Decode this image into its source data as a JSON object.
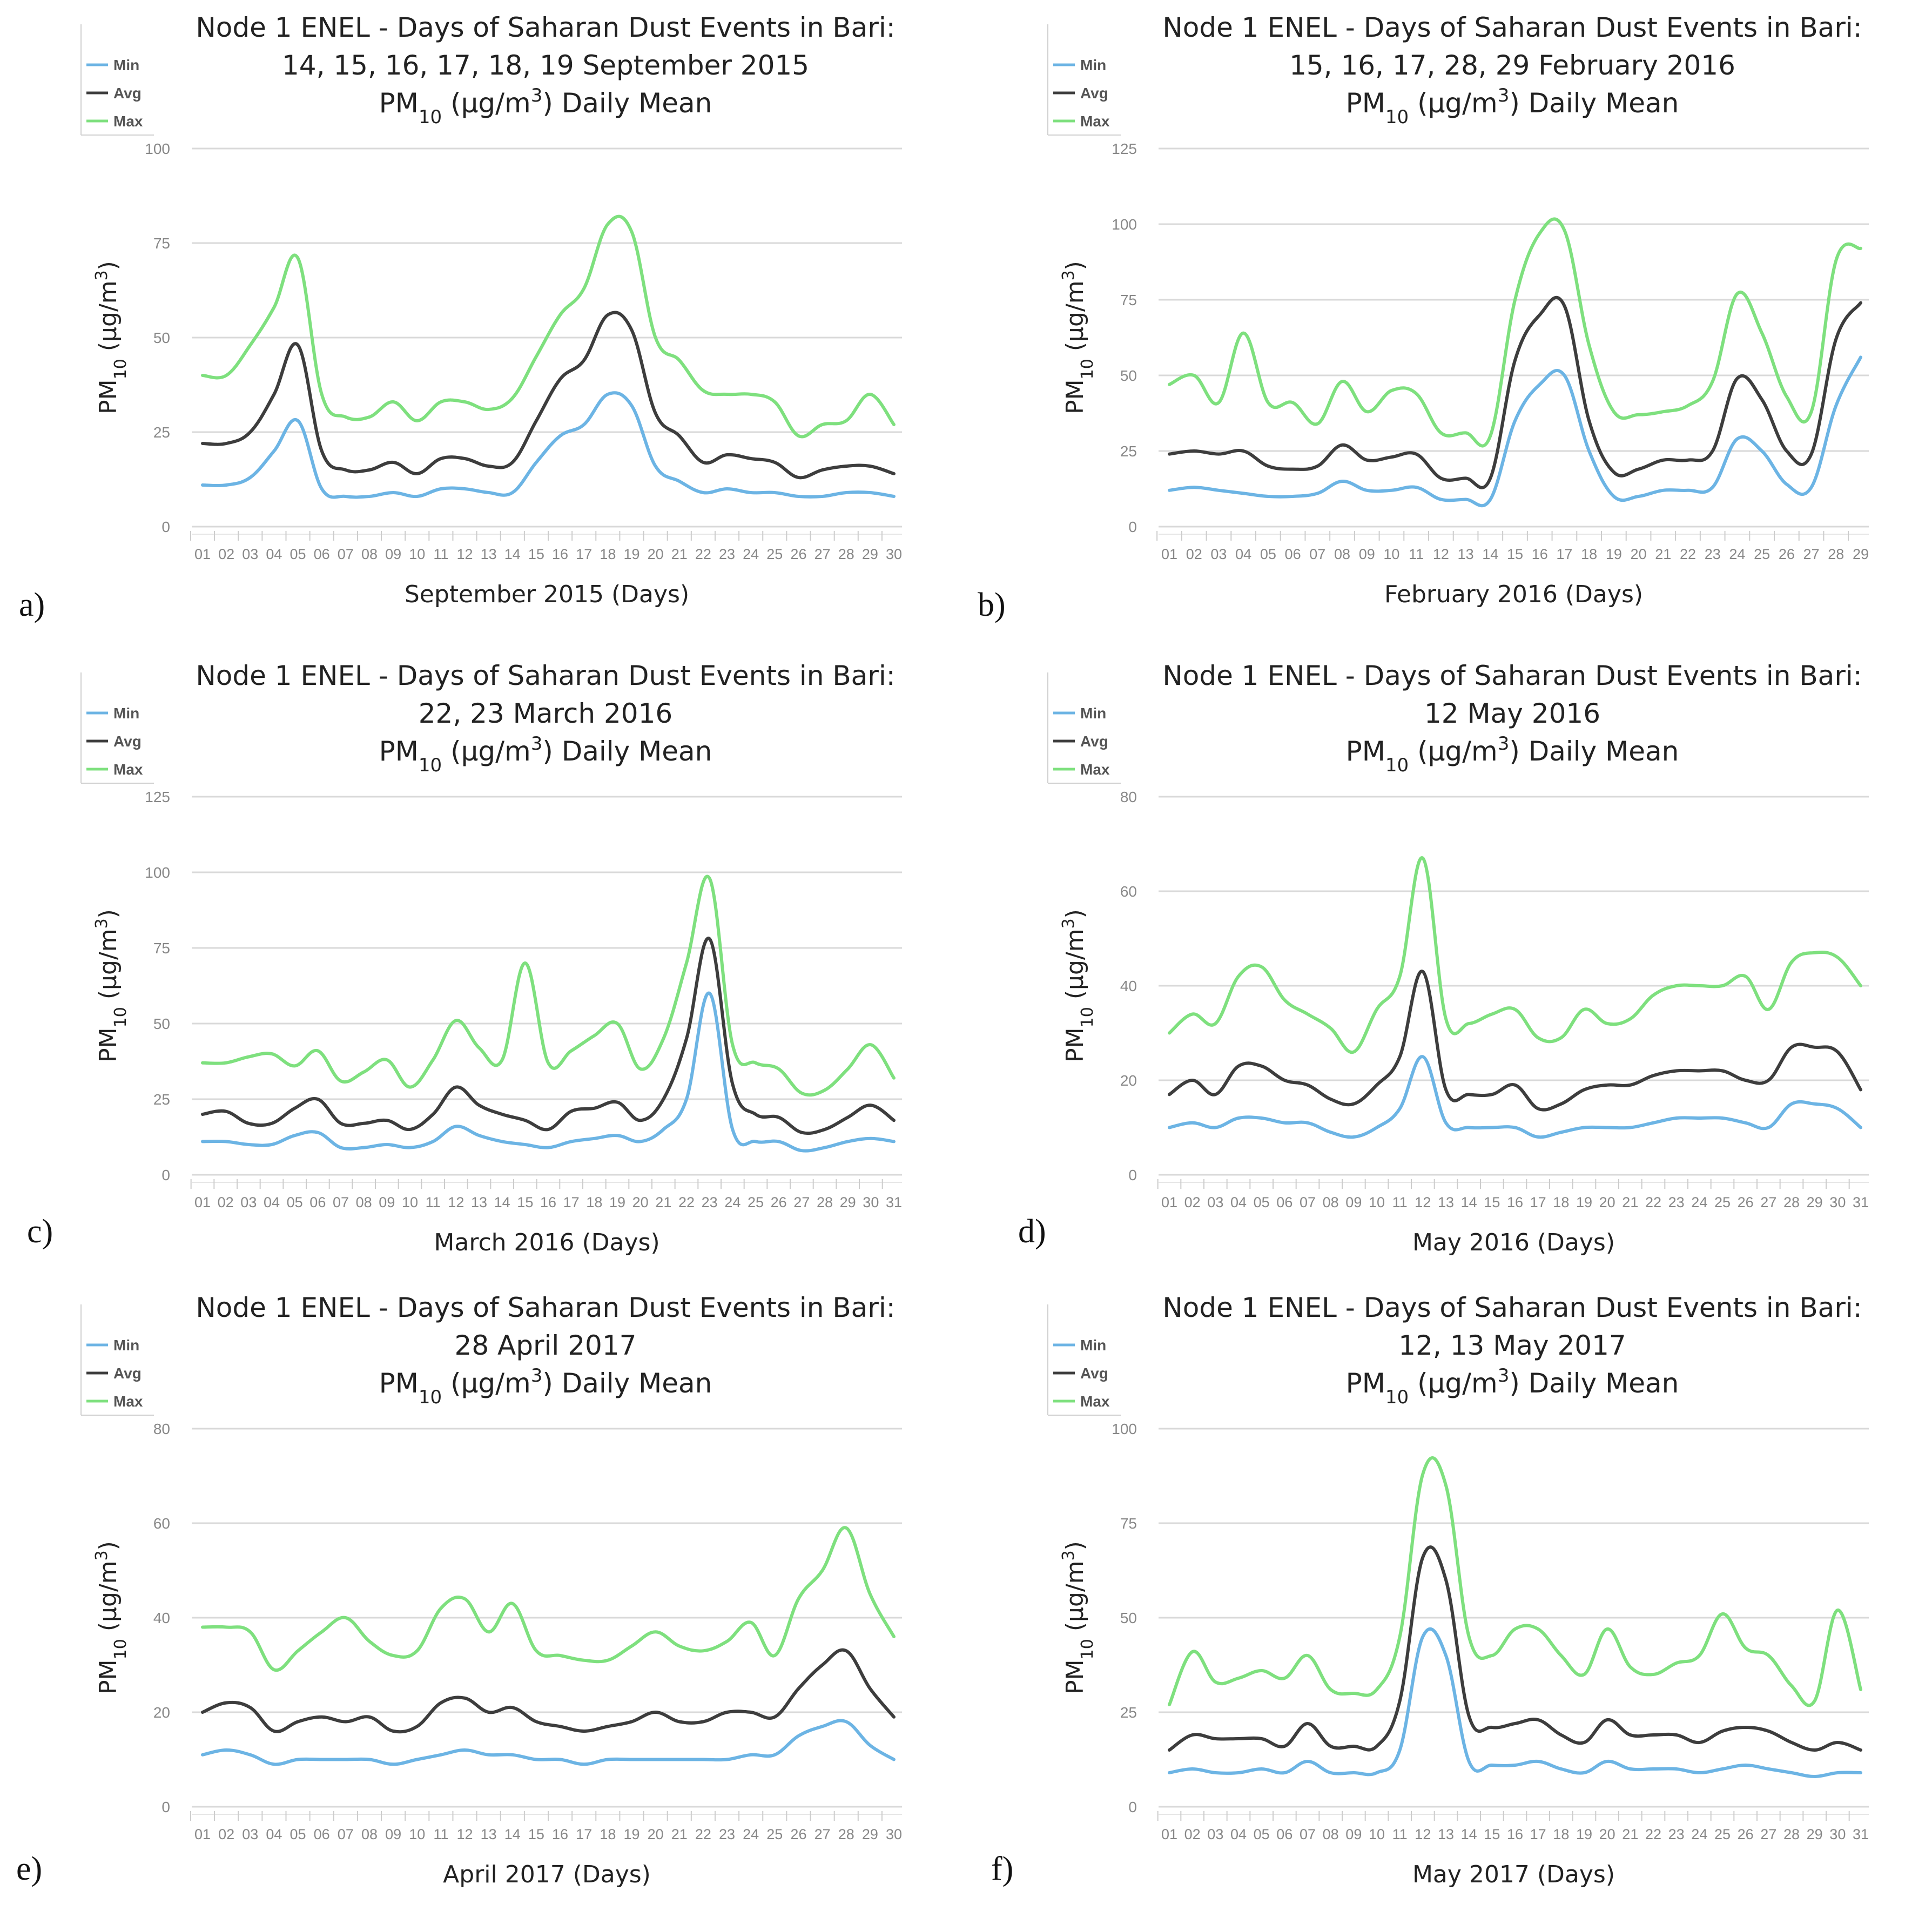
{
  "title_common": "Node 1 ENEL - Days of Saharan Dust Events in Bari:",
  "title_suffix": {
    "pm": "PM",
    "sub": "10",
    "unit_open": " (μg/m",
    "sup": "3",
    "unit_close": ")",
    "rest": " Daily Mean"
  },
  "ylabel": {
    "pm": "PM",
    "sub": "10",
    "unit_open": " (μg/m",
    "sup": "3",
    "unit_close": ")"
  },
  "legend": [
    {
      "name": "Min",
      "color": "#6cb4e4"
    },
    {
      "name": "Avg",
      "color": "#3d3d3d"
    },
    {
      "name": "Max",
      "color": "#7ee07e"
    }
  ],
  "chart_data": [
    {
      "type": "line",
      "label": "a)",
      "title": [
        "Node 1 ENEL - Days of Saharan Dust Events in Bari:",
        "14, 15, 16, 17, 18, 19 September 2015",
        "PM10 (μg/m3) Daily Mean"
      ],
      "title_line2": "14, 15, 16, 17, 18, 19 September 2015",
      "xlabel": "September 2015 (Days)",
      "ylabel": "PM10 (μg/m3)",
      "ylim": [
        0,
        100
      ],
      "yticks": [
        0,
        25,
        50,
        75,
        100
      ],
      "categories": [
        "01",
        "02",
        "03",
        "04",
        "05",
        "06",
        "07",
        "08",
        "09",
        "10",
        "11",
        "12",
        "13",
        "14",
        "15",
        "16",
        "17",
        "18",
        "19",
        "20",
        "21",
        "22",
        "23",
        "24",
        "25",
        "26",
        "27",
        "28",
        "29",
        "30"
      ],
      "series": [
        {
          "name": "Min",
          "values": [
            11,
            11,
            13,
            20,
            28,
            10,
            8,
            8,
            9,
            8,
            10,
            10,
            9,
            9,
            17,
            24,
            27,
            35,
            32,
            16,
            12,
            9,
            10,
            9,
            9,
            8,
            8,
            9,
            9,
            8
          ]
        },
        {
          "name": "Avg",
          "values": [
            22,
            22,
            25,
            35,
            48,
            20,
            15,
            15,
            17,
            14,
            18,
            18,
            16,
            17,
            28,
            39,
            44,
            56,
            52,
            30,
            24,
            17,
            19,
            18,
            17,
            13,
            15,
            16,
            16,
            14
          ]
        },
        {
          "name": "Max",
          "values": [
            40,
            40,
            48,
            58,
            71,
            35,
            29,
            29,
            33,
            28,
            33,
            33,
            31,
            34,
            45,
            56,
            63,
            80,
            78,
            50,
            44,
            36,
            35,
            35,
            33,
            24,
            27,
            28,
            35,
            27
          ]
        }
      ]
    },
    {
      "type": "line",
      "label": "b)",
      "title": [
        "Node 1 ENEL - Days of Saharan Dust Events in Bari:",
        "15, 16, 17, 28, 29 February 2016",
        "PM10 (μg/m3) Daily Mean"
      ],
      "title_line2": "15, 16, 17, 28, 29 February 2016",
      "xlabel": "February 2016 (Days)",
      "ylabel": "PM10 (μg/m3)",
      "ylim": [
        0,
        125
      ],
      "yticks": [
        0,
        25,
        50,
        75,
        100,
        125
      ],
      "categories": [
        "01",
        "02",
        "03",
        "04",
        "05",
        "06",
        "07",
        "08",
        "09",
        "10",
        "11",
        "12",
        "13",
        "14",
        "15",
        "16",
        "17",
        "18",
        "19",
        "20",
        "21",
        "22",
        "23",
        "24",
        "25",
        "26",
        "27",
        "28",
        "29"
      ],
      "series": [
        {
          "name": "Min",
          "values": [
            12,
            13,
            12,
            11,
            10,
            10,
            11,
            15,
            12,
            12,
            13,
            9,
            9,
            9,
            35,
            47,
            50,
            25,
            10,
            10,
            12,
            12,
            13,
            29,
            25,
            14,
            13,
            40,
            56
          ]
        },
        {
          "name": "Avg",
          "values": [
            24,
            25,
            24,
            25,
            20,
            19,
            20,
            27,
            22,
            23,
            24,
            16,
            16,
            16,
            55,
            70,
            73,
            35,
            18,
            19,
            22,
            22,
            25,
            49,
            42,
            25,
            24,
            62,
            74
          ]
        },
        {
          "name": "Max",
          "values": [
            47,
            50,
            41,
            64,
            41,
            41,
            34,
            48,
            38,
            45,
            44,
            31,
            31,
            30,
            75,
            97,
            98,
            60,
            38,
            37,
            38,
            40,
            48,
            77,
            64,
            43,
            38,
            88,
            92
          ]
        }
      ]
    },
    {
      "type": "line",
      "label": "c)",
      "title": [
        "Node 1 ENEL - Days of Saharan Dust Events in Bari:",
        "22, 23 March 2016",
        "PM10 (μg/m3) Daily Mean"
      ],
      "title_line2": "22, 23 March 2016",
      "xlabel": "March 2016 (Days)",
      "ylabel": "PM10 (μg/m3)",
      "ylim": [
        0,
        125
      ],
      "yticks": [
        0,
        25,
        50,
        75,
        100,
        125
      ],
      "categories": [
        "01",
        "02",
        "03",
        "04",
        "05",
        "06",
        "07",
        "08",
        "09",
        "10",
        "11",
        "12",
        "13",
        "14",
        "15",
        "16",
        "17",
        "18",
        "19",
        "20",
        "21",
        "22",
        "23",
        "24",
        "25",
        "26",
        "27",
        "28",
        "29",
        "30",
        "31"
      ],
      "series": [
        {
          "name": "Min",
          "values": [
            11,
            11,
            10,
            10,
            13,
            14,
            9,
            9,
            10,
            9,
            11,
            16,
            13,
            11,
            10,
            9,
            11,
            12,
            13,
            11,
            15,
            25,
            60,
            15,
            11,
            11,
            8,
            9,
            11,
            12,
            11
          ]
        },
        {
          "name": "Avg",
          "values": [
            20,
            21,
            17,
            17,
            22,
            25,
            17,
            17,
            18,
            15,
            20,
            29,
            23,
            20,
            18,
            15,
            21,
            22,
            24,
            18,
            25,
            45,
            78,
            30,
            20,
            19,
            14,
            15,
            19,
            23,
            18
          ]
        },
        {
          "name": "Max",
          "values": [
            37,
            37,
            39,
            40,
            36,
            41,
            31,
            34,
            38,
            29,
            38,
            51,
            42,
            38,
            70,
            37,
            41,
            46,
            50,
            35,
            45,
            70,
            98,
            43,
            37,
            35,
            27,
            28,
            35,
            43,
            32
          ]
        }
      ]
    },
    {
      "type": "line",
      "label": "d)",
      "title": [
        "Node 1 ENEL - Days of Saharan Dust Events in Bari:",
        "12 May 2016",
        "PM10 (μg/m3) Daily Mean"
      ],
      "title_line2": "12 May 2016",
      "xlabel": "May 2016 (Days)",
      "ylabel": "PM10 (μg/m3)",
      "ylim": [
        0,
        80
      ],
      "yticks": [
        0,
        20,
        40,
        60,
        80
      ],
      "categories": [
        "01",
        "02",
        "03",
        "04",
        "05",
        "06",
        "07",
        "08",
        "09",
        "10",
        "11",
        "12",
        "13",
        "14",
        "15",
        "16",
        "17",
        "18",
        "19",
        "20",
        "21",
        "22",
        "23",
        "24",
        "25",
        "26",
        "27",
        "28",
        "29",
        "30",
        "31"
      ],
      "series": [
        {
          "name": "Min",
          "values": [
            10,
            11,
            10,
            12,
            12,
            11,
            11,
            9,
            8,
            10,
            14,
            25,
            11,
            10,
            10,
            10,
            8,
            9,
            10,
            10,
            10,
            11,
            12,
            12,
            12,
            11,
            10,
            15,
            15,
            14,
            10
          ]
        },
        {
          "name": "Avg",
          "values": [
            17,
            20,
            17,
            23,
            23,
            20,
            19,
            16,
            15,
            19,
            25,
            43,
            18,
            17,
            17,
            19,
            14,
            15,
            18,
            19,
            19,
            21,
            22,
            22,
            22,
            20,
            20,
            27,
            27,
            26,
            18
          ]
        },
        {
          "name": "Max",
          "values": [
            30,
            34,
            32,
            42,
            44,
            37,
            34,
            31,
            26,
            35,
            42,
            67,
            33,
            32,
            34,
            35,
            29,
            29,
            35,
            32,
            33,
            38,
            40,
            40,
            40,
            42,
            35,
            45,
            47,
            46,
            40
          ]
        }
      ]
    },
    {
      "type": "line",
      "label": "e)",
      "title": [
        "Node 1 ENEL - Days of Saharan Dust Events in Bari:",
        "28 April 2017",
        "PM10 (μg/m3) Daily Mean"
      ],
      "title_line2": "28 April 2017",
      "xlabel": "April 2017 (Days)",
      "ylabel": "PM10 (μg/m3)",
      "ylim": [
        0,
        80
      ],
      "yticks": [
        0,
        20,
        40,
        60,
        80
      ],
      "categories": [
        "01",
        "02",
        "03",
        "04",
        "05",
        "06",
        "07",
        "08",
        "09",
        "10",
        "11",
        "12",
        "13",
        "14",
        "15",
        "16",
        "17",
        "18",
        "19",
        "20",
        "21",
        "22",
        "23",
        "24",
        "25",
        "26",
        "27",
        "28",
        "29",
        "30"
      ],
      "series": [
        {
          "name": "Min",
          "values": [
            11,
            12,
            11,
            9,
            10,
            10,
            10,
            10,
            9,
            10,
            11,
            12,
            11,
            11,
            10,
            10,
            9,
            10,
            10,
            10,
            10,
            10,
            10,
            11,
            11,
            15,
            17,
            18,
            13,
            10
          ]
        },
        {
          "name": "Avg",
          "values": [
            20,
            22,
            21,
            16,
            18,
            19,
            18,
            19,
            16,
            17,
            22,
            23,
            20,
            21,
            18,
            17,
            16,
            17,
            18,
            20,
            18,
            18,
            20,
            20,
            19,
            25,
            30,
            33,
            25,
            19
          ]
        },
        {
          "name": "Max",
          "values": [
            38,
            38,
            37,
            29,
            33,
            37,
            40,
            35,
            32,
            33,
            42,
            44,
            37,
            43,
            33,
            32,
            31,
            31,
            34,
            37,
            34,
            33,
            35,
            39,
            32,
            44,
            50,
            59,
            45,
            36
          ]
        }
      ]
    },
    {
      "type": "line",
      "label": "f)",
      "title": [
        "Node 1 ENEL - Days of Saharan Dust Events in Bari:",
        "12, 13 May 2017",
        "PM10 (μg/m3) Daily Mean"
      ],
      "title_line2": "12, 13 May 2017",
      "xlabel": "May 2017 (Days)",
      "ylabel": "PM10 (μg/m3)",
      "ylim": [
        0,
        100
      ],
      "yticks": [
        0,
        25,
        50,
        75,
        100
      ],
      "categories": [
        "01",
        "02",
        "03",
        "04",
        "05",
        "06",
        "07",
        "08",
        "09",
        "10",
        "11",
        "12",
        "13",
        "14",
        "15",
        "16",
        "17",
        "18",
        "19",
        "20",
        "21",
        "22",
        "23",
        "24",
        "25",
        "26",
        "27",
        "28",
        "29",
        "30",
        "31"
      ],
      "series": [
        {
          "name": "Min",
          "values": [
            9,
            10,
            9,
            9,
            10,
            9,
            12,
            9,
            9,
            9,
            15,
            45,
            40,
            12,
            11,
            11,
            12,
            10,
            9,
            12,
            10,
            10,
            10,
            9,
            10,
            11,
            10,
            9,
            8,
            9,
            9
          ]
        },
        {
          "name": "Avg",
          "values": [
            15,
            19,
            18,
            18,
            18,
            16,
            22,
            16,
            16,
            16,
            28,
            66,
            60,
            24,
            21,
            22,
            23,
            19,
            17,
            23,
            19,
            19,
            19,
            17,
            20,
            21,
            20,
            17,
            15,
            17,
            15
          ]
        },
        {
          "name": "Max",
          "values": [
            27,
            41,
            33,
            34,
            36,
            34,
            40,
            31,
            30,
            31,
            45,
            88,
            85,
            45,
            40,
            47,
            47,
            40,
            35,
            47,
            37,
            35,
            38,
            40,
            51,
            42,
            40,
            32,
            28,
            52,
            31
          ]
        }
      ]
    }
  ]
}
